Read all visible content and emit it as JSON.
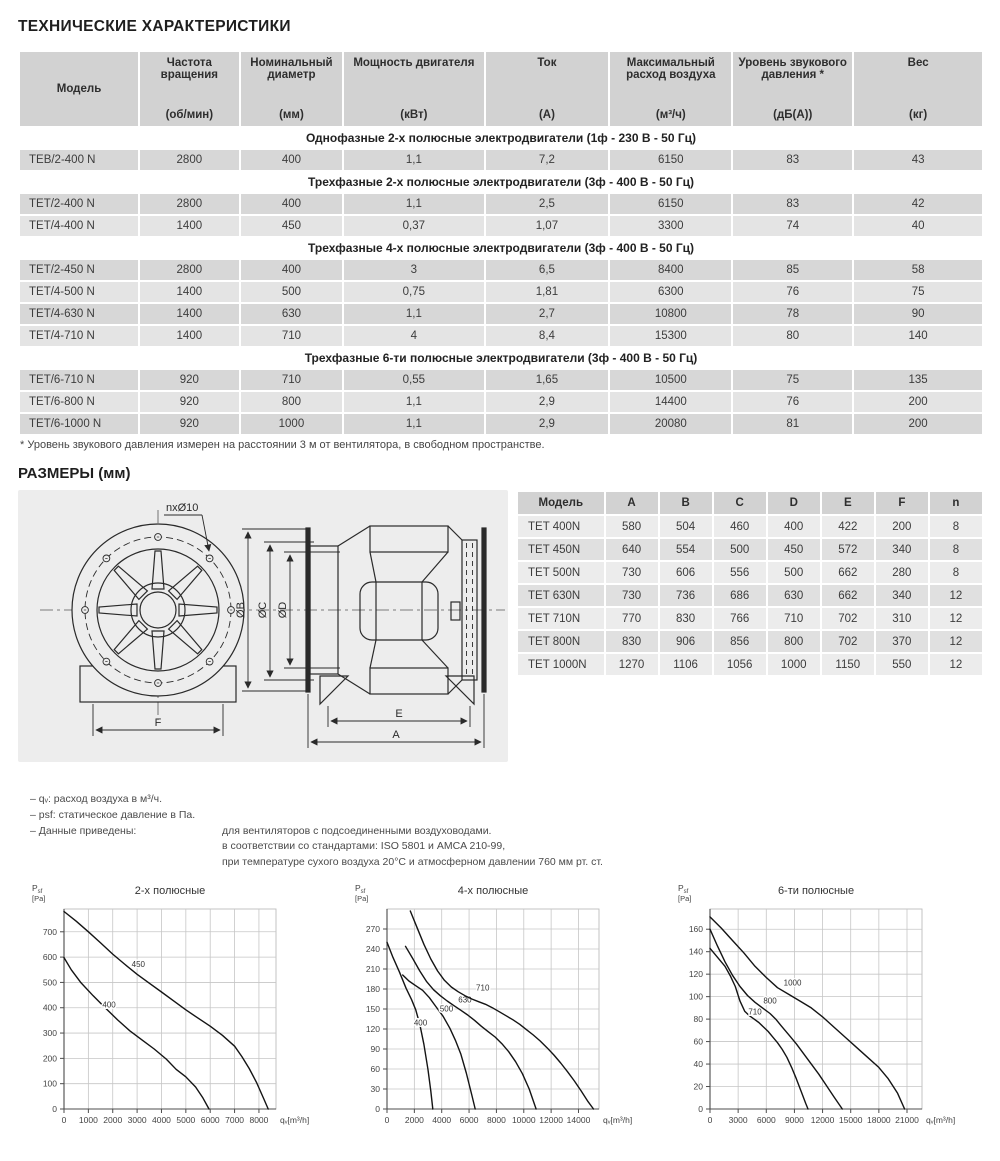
{
  "page": {
    "title": "ТЕХНИЧЕСКИЕ ХАРАКТЕРИСТИКИ",
    "dimensions_title": "РАЗМЕРЫ (мм)"
  },
  "spec_table": {
    "columns": [
      {
        "name": "Модель",
        "unit": ""
      },
      {
        "name": "Частота вращения",
        "unit": "(об/мин)"
      },
      {
        "name": "Номинальный диаметр",
        "unit": "(мм)"
      },
      {
        "name": "Мощность двигателя",
        "unit": "(кВт)"
      },
      {
        "name": "Ток",
        "unit": "(А)"
      },
      {
        "name": "Максимальный расход воздуха",
        "unit": "(м³/ч)"
      },
      {
        "name": "Уровень звукового давления *",
        "unit": "(дБ(А))"
      },
      {
        "name": "Вес",
        "unit": "(кг)"
      }
    ],
    "sections": [
      {
        "title": "Однофазные 2-х полюсные электродвигатели (1ф - 230 В - 50 Гц)",
        "rows": [
          [
            "ТЕВ/2-400 N",
            "2800",
            "400",
            "1,1",
            "7,2",
            "6150",
            "83",
            "43"
          ]
        ]
      },
      {
        "title": "Трехфазные 2-х полюсные электродвигатели (3ф - 400 В - 50 Гц)",
        "rows": [
          [
            "ТЕТ/2-400 N",
            "2800",
            "400",
            "1,1",
            "2,5",
            "6150",
            "83",
            "42"
          ],
          [
            "ТЕТ/4-400 N",
            "1400",
            "450",
            "0,37",
            "1,07",
            "3300",
            "74",
            "40"
          ]
        ]
      },
      {
        "title": "Трехфазные 4-х полюсные электродвигатели (3ф - 400 В - 50 Гц)",
        "rows": [
          [
            "ТЕТ/2-450 N",
            "2800",
            "400",
            "3",
            "6,5",
            "8400",
            "85",
            "58"
          ],
          [
            "ТЕТ/4-500 N",
            "1400",
            "500",
            "0,75",
            "1,81",
            "6300",
            "76",
            "75"
          ],
          [
            "ТЕТ/4-630 N",
            "1400",
            "630",
            "1,1",
            "2,7",
            "10800",
            "78",
            "90"
          ],
          [
            "ТЕТ/4-710 N",
            "1400",
            "710",
            "4",
            "8,4",
            "15300",
            "80",
            "140"
          ]
        ]
      },
      {
        "title": "Трехфазные 6-ти полюсные электродвигатели (3ф - 400 В - 50 Гц)",
        "rows": [
          [
            "ТЕТ/6-710 N",
            "920",
            "710",
            "0,55",
            "1,65",
            "10500",
            "75",
            "135"
          ],
          [
            "ТЕТ/6-800 N",
            "920",
            "800",
            "1,1",
            "2,9",
            "14400",
            "76",
            "200"
          ],
          [
            "ТЕТ/6-1000 N",
            "920",
            "1000",
            "1,1",
            "2,9",
            "20080",
            "81",
            "200"
          ]
        ]
      }
    ],
    "footnote": "* Уровень звукового давления измерен на расстоянии 3 м от вентилятора, в свободном пространстве."
  },
  "dimensions_table": {
    "columns": [
      "Модель",
      "A",
      "B",
      "C",
      "D",
      "E",
      "F",
      "n"
    ],
    "rows": [
      [
        "TET 400N",
        "580",
        "504",
        "460",
        "400",
        "422",
        "200",
        "8"
      ],
      [
        "TET 450N",
        "640",
        "554",
        "500",
        "450",
        "572",
        "340",
        "8"
      ],
      [
        "TET 500N",
        "730",
        "606",
        "556",
        "500",
        "662",
        "280",
        "8"
      ],
      [
        "TET 630N",
        "730",
        "736",
        "686",
        "630",
        "662",
        "340",
        "12"
      ],
      [
        "TET 710N",
        "770",
        "830",
        "766",
        "710",
        "702",
        "310",
        "12"
      ],
      [
        "TET 800N",
        "830",
        "906",
        "856",
        "800",
        "702",
        "370",
        "12"
      ],
      [
        "TET 1000N",
        "1270",
        "1106",
        "1056",
        "1000",
        "1150",
        "550",
        "12"
      ]
    ]
  },
  "diagram": {
    "labels": {
      "holes": "nxØ10",
      "dim_b": "ØB",
      "dim_c": "ØC",
      "dim_d": "ØD",
      "dim_f": "F",
      "dim_e": "E",
      "dim_a": "A"
    }
  },
  "notes": [
    {
      "label": "– qᵥ: расход воздуха в м³/ч.",
      "text": ""
    },
    {
      "label": "– psf: статическое давление в Па.",
      "text": ""
    },
    {
      "label": "– Данные приведены:",
      "text": "для вентиляторов с подсоединенными воздуховодами."
    },
    {
      "label": "",
      "text": "в соответствии со стандартами: ISO 5801 и AMCA 210-99,"
    },
    {
      "label": "",
      "text": "при температуре сухого воздуха 20°С и атмосферном давлении 760 мм рт. ст."
    }
  ],
  "chart_data": [
    {
      "type": "line",
      "title": "2-х полюсные",
      "y_label": {
        "main": "P",
        "sub": "sf",
        "unit": "[Pa]"
      },
      "x_label": "qᵥ[m³/h]",
      "ylabel": "Psf [Pa]",
      "xlabel": "qv [m³/h]",
      "grid": true,
      "x_ticks": [
        0,
        1000,
        2000,
        3000,
        4000,
        5000,
        6000,
        7000,
        8000
      ],
      "y_ticks": [
        0,
        100,
        200,
        300,
        400,
        500,
        600,
        700
      ],
      "x_plot_max": 8700,
      "y_plot_max": 790,
      "series": [
        {
          "name": "450",
          "label_at": [
            3050,
            560
          ],
          "points": [
            [
              0,
              780
            ],
            [
              500,
              742
            ],
            [
              1000,
              700
            ],
            [
              1500,
              656
            ],
            [
              2000,
              612
            ],
            [
              2500,
              571
            ],
            [
              3000,
              532
            ],
            [
              3500,
              497
            ],
            [
              4000,
              462
            ],
            [
              4500,
              427
            ],
            [
              5000,
              392
            ],
            [
              5500,
              359
            ],
            [
              6000,
              327
            ],
            [
              6500,
              291
            ],
            [
              7000,
              248
            ],
            [
              7300,
              207
            ],
            [
              7600,
              160
            ],
            [
              7900,
              105
            ],
            [
              8200,
              40
            ],
            [
              8380,
              0
            ]
          ]
        },
        {
          "name": "400",
          "label_at": [
            1850,
            400
          ],
          "points": [
            [
              0,
              598
            ],
            [
              300,
              550
            ],
            [
              700,
              498
            ],
            [
              1200,
              447
            ],
            [
              1700,
              399
            ],
            [
              2200,
              352
            ],
            [
              2700,
              309
            ],
            [
              3200,
              273
            ],
            [
              3700,
              237
            ],
            [
              4200,
              197
            ],
            [
              4600,
              157
            ],
            [
              5000,
              127
            ],
            [
              5400,
              87
            ],
            [
              5700,
              44
            ],
            [
              5950,
              0
            ]
          ]
        }
      ]
    },
    {
      "type": "line",
      "title": "4-х полюсные",
      "y_label": {
        "main": "P",
        "sub": "sf",
        "unit": "[Pa]"
      },
      "x_label": "qᵥ[m³/h]",
      "ylabel": "Psf [Pa]",
      "xlabel": "qv [m³/h]",
      "grid": true,
      "x_ticks": [
        0,
        2000,
        4000,
        6000,
        8000,
        10000,
        12000,
        14000
      ],
      "y_ticks": [
        0,
        30,
        60,
        90,
        120,
        150,
        180,
        210,
        240,
        270
      ],
      "x_plot_max": 15500,
      "y_plot_max": 300,
      "series": [
        {
          "name": "400",
          "label_at": [
            2450,
            125
          ],
          "points": [
            [
              0,
              250
            ],
            [
              400,
              229
            ],
            [
              900,
              206
            ],
            [
              1400,
              181
            ],
            [
              1800,
              164
            ],
            [
              2100,
              149
            ],
            [
              2400,
              127
            ],
            [
              2700,
              97
            ],
            [
              3000,
              59
            ],
            [
              3200,
              27
            ],
            [
              3350,
              0
            ]
          ]
        },
        {
          "name": "500",
          "label_at": [
            4350,
            146
          ],
          "points": [
            [
              1150,
              201
            ],
            [
              1600,
              192
            ],
            [
              2100,
              185
            ],
            [
              2600,
              178
            ],
            [
              3100,
              167
            ],
            [
              3600,
              153
            ],
            [
              4100,
              139
            ],
            [
              4600,
              121
            ],
            [
              5000,
              103
            ],
            [
              5400,
              82
            ],
            [
              5800,
              54
            ],
            [
              6200,
              21
            ],
            [
              6450,
              0
            ]
          ]
        },
        {
          "name": "630",
          "label_at": [
            5700,
            160
          ],
          "points": [
            [
              1350,
              244
            ],
            [
              1900,
              225
            ],
            [
              2400,
              207
            ],
            [
              2900,
              191
            ],
            [
              3400,
              179
            ],
            [
              3900,
              170
            ],
            [
              4400,
              162
            ],
            [
              4900,
              155
            ],
            [
              5400,
              148
            ],
            [
              5900,
              141
            ],
            [
              6400,
              133
            ],
            [
              6900,
              124
            ],
            [
              7400,
              116
            ],
            [
              7900,
              108
            ],
            [
              8400,
              98
            ],
            [
              8900,
              86
            ],
            [
              9400,
              71
            ],
            [
              9900,
              53
            ],
            [
              10400,
              30
            ],
            [
              10900,
              0
            ]
          ]
        },
        {
          "name": "710",
          "label_at": [
            7000,
            178
          ],
          "points": [
            [
              1700,
              297
            ],
            [
              2200,
              272
            ],
            [
              2700,
              247
            ],
            [
              3200,
              225
            ],
            [
              3700,
              207
            ],
            [
              4200,
              193
            ],
            [
              4700,
              183
            ],
            [
              5200,
              176
            ],
            [
              5700,
              170
            ],
            [
              6200,
              165
            ],
            [
              6700,
              161
            ],
            [
              7200,
              157
            ],
            [
              7700,
              152
            ],
            [
              8200,
              146
            ],
            [
              8700,
              140
            ],
            [
              9200,
              134
            ],
            [
              9700,
              127
            ],
            [
              10200,
              119
            ],
            [
              10700,
              111
            ],
            [
              11200,
              102
            ],
            [
              11700,
              92
            ],
            [
              12200,
              81
            ],
            [
              12700,
              69
            ],
            [
              13200,
              56
            ],
            [
              13700,
              42
            ],
            [
              14200,
              27
            ],
            [
              14700,
              11
            ],
            [
              15100,
              0
            ]
          ]
        }
      ]
    },
    {
      "type": "line",
      "title": "6-ти полюсные",
      "y_label": {
        "main": "P",
        "sub": "sf",
        "unit": "[Pa]"
      },
      "x_label": "qᵥ[m³/h]",
      "ylabel": "Psf [Pa]",
      "xlabel": "qv [m³/h]",
      "grid": true,
      "x_ticks": [
        0,
        3000,
        6000,
        9000,
        12000,
        15000,
        18000,
        21000
      ],
      "y_ticks": [
        0,
        20,
        40,
        60,
        80,
        100,
        120,
        140,
        160
      ],
      "x_plot_max": 22600,
      "y_plot_max": 178,
      "series": [
        {
          "name": "710",
          "label_at": [
            4800,
            84
          ],
          "points": [
            [
              0,
              143
            ],
            [
              800,
              135
            ],
            [
              1600,
              127
            ],
            [
              2200,
              118
            ],
            [
              2700,
              109
            ],
            [
              3200,
              96
            ],
            [
              3700,
              87
            ],
            [
              4200,
              83
            ],
            [
              4700,
              80
            ],
            [
              5200,
              77
            ],
            [
              5700,
              73
            ],
            [
              6200,
              69
            ],
            [
              6700,
              64
            ],
            [
              7200,
              59
            ],
            [
              7700,
              53
            ],
            [
              8200,
              46
            ],
            [
              8700,
              37
            ],
            [
              9200,
              27
            ],
            [
              9700,
              16
            ],
            [
              10200,
              5
            ],
            [
              10450,
              0
            ]
          ]
        },
        {
          "name": "800",
          "label_at": [
            6400,
            94
          ],
          "points": [
            [
              0,
              160
            ],
            [
              800,
              145
            ],
            [
              1600,
              131
            ],
            [
              2400,
              119
            ],
            [
              3200,
              109
            ],
            [
              4000,
              101
            ],
            [
              4800,
              95
            ],
            [
              5600,
              90
            ],
            [
              6400,
              85
            ],
            [
              7000,
              80
            ],
            [
              7600,
              74
            ],
            [
              8400,
              66
            ],
            [
              9200,
              58
            ],
            [
              10000,
              49
            ],
            [
              10800,
              40
            ],
            [
              11600,
              31
            ],
            [
              12400,
              21
            ],
            [
              13200,
              11
            ],
            [
              14100,
              0
            ]
          ]
        },
        {
          "name": "1000",
          "label_at": [
            8800,
            110
          ],
          "points": [
            [
              0,
              171
            ],
            [
              1200,
              161
            ],
            [
              2400,
              150
            ],
            [
              3600,
              139
            ],
            [
              4800,
              127
            ],
            [
              6000,
              117
            ],
            [
              7200,
              108
            ],
            [
              8400,
              102
            ],
            [
              9600,
              96
            ],
            [
              10800,
              90
            ],
            [
              12000,
              82
            ],
            [
              13200,
              73
            ],
            [
              14400,
              64
            ],
            [
              15600,
              55
            ],
            [
              16800,
              46
            ],
            [
              18000,
              37
            ],
            [
              19000,
              27
            ],
            [
              20000,
              14
            ],
            [
              20750,
              0
            ]
          ]
        }
      ]
    }
  ]
}
